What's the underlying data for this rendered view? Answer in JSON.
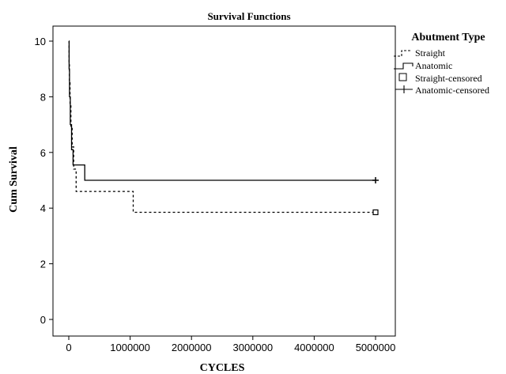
{
  "chart_data": {
    "type": "line",
    "title": "Survival Functions",
    "xlabel": "CYCLES",
    "ylabel": "Cum Survival",
    "xlim": [
      0,
      5000000
    ],
    "ylim": [
      0,
      10
    ],
    "x_ticks": [
      0,
      1000000,
      2000000,
      3000000,
      4000000,
      5000000
    ],
    "x_tick_labels": [
      "0",
      "1000000",
      "2000000",
      "3000000",
      "4000000",
      "5000000"
    ],
    "y_ticks": [
      0,
      2,
      4,
      6,
      8,
      10
    ],
    "y_tick_labels": [
      "0",
      "2",
      "4",
      "6",
      "8",
      "10"
    ],
    "grid": false,
    "legend": {
      "title": "Abutment Type",
      "placement": "top-right",
      "entries": [
        "Straight",
        "Anatomic",
        "Straight-censored",
        "Anatomic-censored"
      ]
    },
    "series": [
      {
        "name": "Straight",
        "style": "dashed",
        "color": "#000000",
        "step_points": [
          [
            0,
            10
          ],
          [
            5000,
            9.2
          ],
          [
            10000,
            8.5
          ],
          [
            20000,
            7.7
          ],
          [
            35000,
            6.9
          ],
          [
            55000,
            6.2
          ],
          [
            80000,
            5.4
          ],
          [
            120000,
            4.6
          ],
          [
            1050000,
            3.85
          ],
          [
            5000000,
            3.85
          ]
        ]
      },
      {
        "name": "Anatomic",
        "style": "solid",
        "color": "#000000",
        "step_points": [
          [
            0,
            10
          ],
          [
            5000,
            9.0
          ],
          [
            12000,
            8.0
          ],
          [
            25000,
            7.0
          ],
          [
            45000,
            6.1
          ],
          [
            70000,
            5.55
          ],
          [
            260000,
            5.0
          ],
          [
            5000000,
            5.0
          ]
        ]
      }
    ],
    "censored": [
      {
        "name": "Straight-censored",
        "marker": "square",
        "x": [
          5000000
        ],
        "y": [
          3.85
        ]
      },
      {
        "name": "Anatomic-censored",
        "marker": "plus",
        "x": [
          5000000
        ],
        "y": [
          5.0
        ]
      }
    ]
  }
}
